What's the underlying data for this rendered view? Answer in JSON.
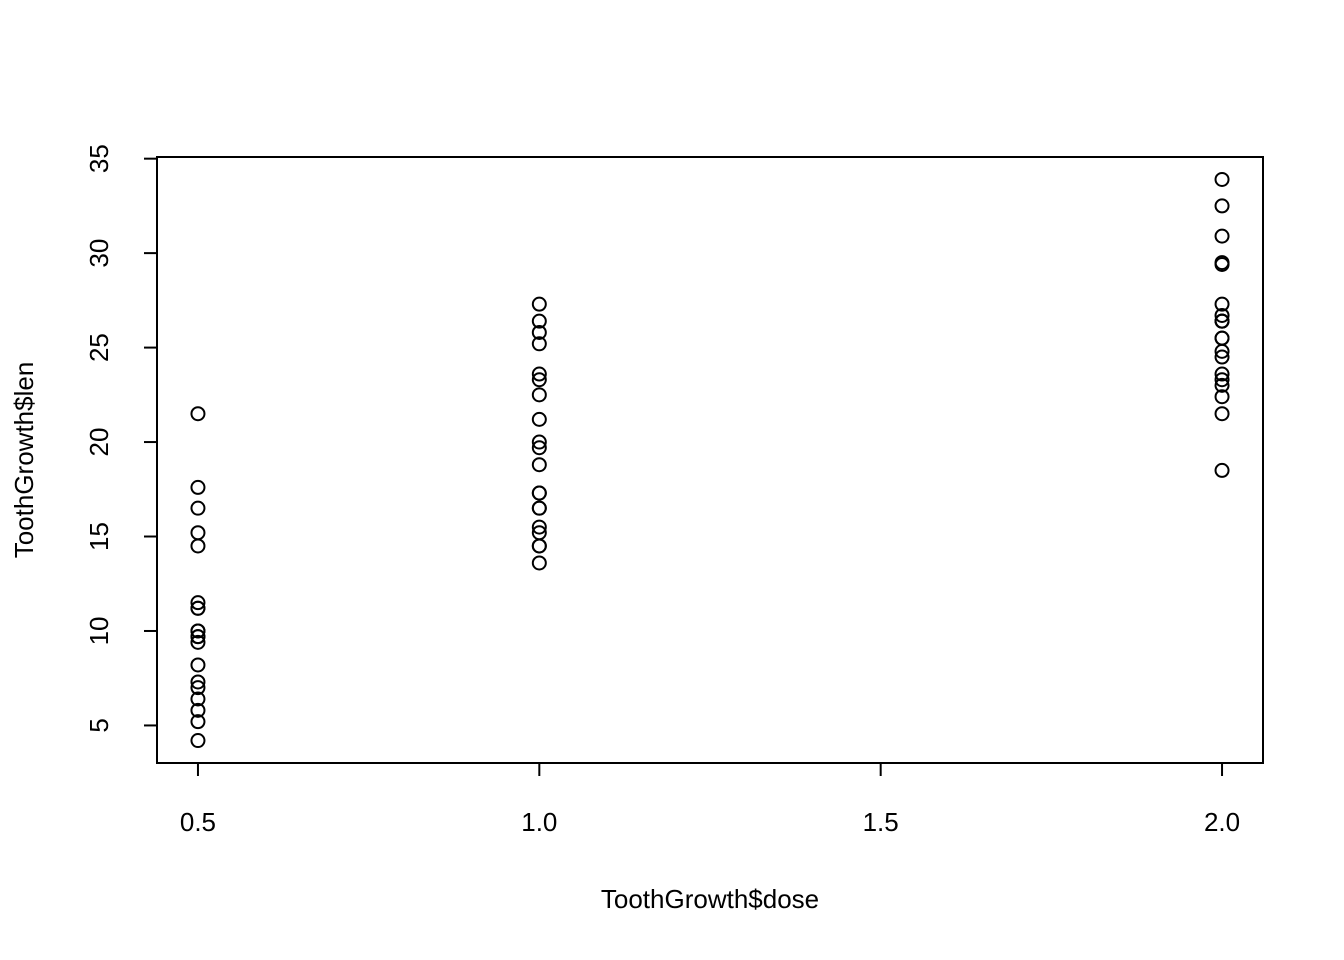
{
  "chart_data": {
    "type": "scatter",
    "xlabel": "ToothGrowth$dose",
    "ylabel": "ToothGrowth$len",
    "x": [
      0.5,
      0.5,
      0.5,
      0.5,
      0.5,
      0.5,
      0.5,
      0.5,
      0.5,
      0.5,
      1,
      1,
      1,
      1,
      1,
      1,
      1,
      1,
      1,
      1,
      2,
      2,
      2,
      2,
      2,
      2,
      2,
      2,
      2,
      2,
      0.5,
      0.5,
      0.5,
      0.5,
      0.5,
      0.5,
      0.5,
      0.5,
      0.5,
      0.5,
      1,
      1,
      1,
      1,
      1,
      1,
      1,
      1,
      1,
      1,
      2,
      2,
      2,
      2,
      2,
      2,
      2,
      2,
      2,
      2
    ],
    "values": [
      4.2,
      11.5,
      7.3,
      5.8,
      6.4,
      10,
      11.2,
      11.2,
      5.2,
      7,
      16.5,
      16.5,
      15.2,
      17.3,
      22.5,
      17.3,
      13.6,
      14.5,
      18.8,
      15.5,
      23.6,
      18.5,
      33.9,
      25.5,
      26.4,
      32.5,
      26.7,
      21.5,
      23.3,
      29.5,
      15.2,
      21.5,
      17.6,
      9.7,
      14.5,
      10,
      8.2,
      9.4,
      16.5,
      9.7,
      19.7,
      23.3,
      23.6,
      26.4,
      20,
      25.2,
      25.8,
      21.2,
      14.5,
      27.3,
      25.5,
      26.4,
      22.4,
      24.5,
      24.8,
      30.9,
      26.4,
      27.3,
      29.4,
      23
    ],
    "color": "#000000",
    "xlim": [
      0.44,
      2.06
    ],
    "xticks": [
      0.5,
      {
        "value": 1,
        "label": "1.0"
      },
      1.5,
      {
        "value": 2,
        "label": "2.0"
      }
    ],
    "ylim": [
      3.012,
      35.088
    ],
    "yticks": [
      5,
      10,
      15,
      20,
      25,
      30,
      35
    ]
  }
}
